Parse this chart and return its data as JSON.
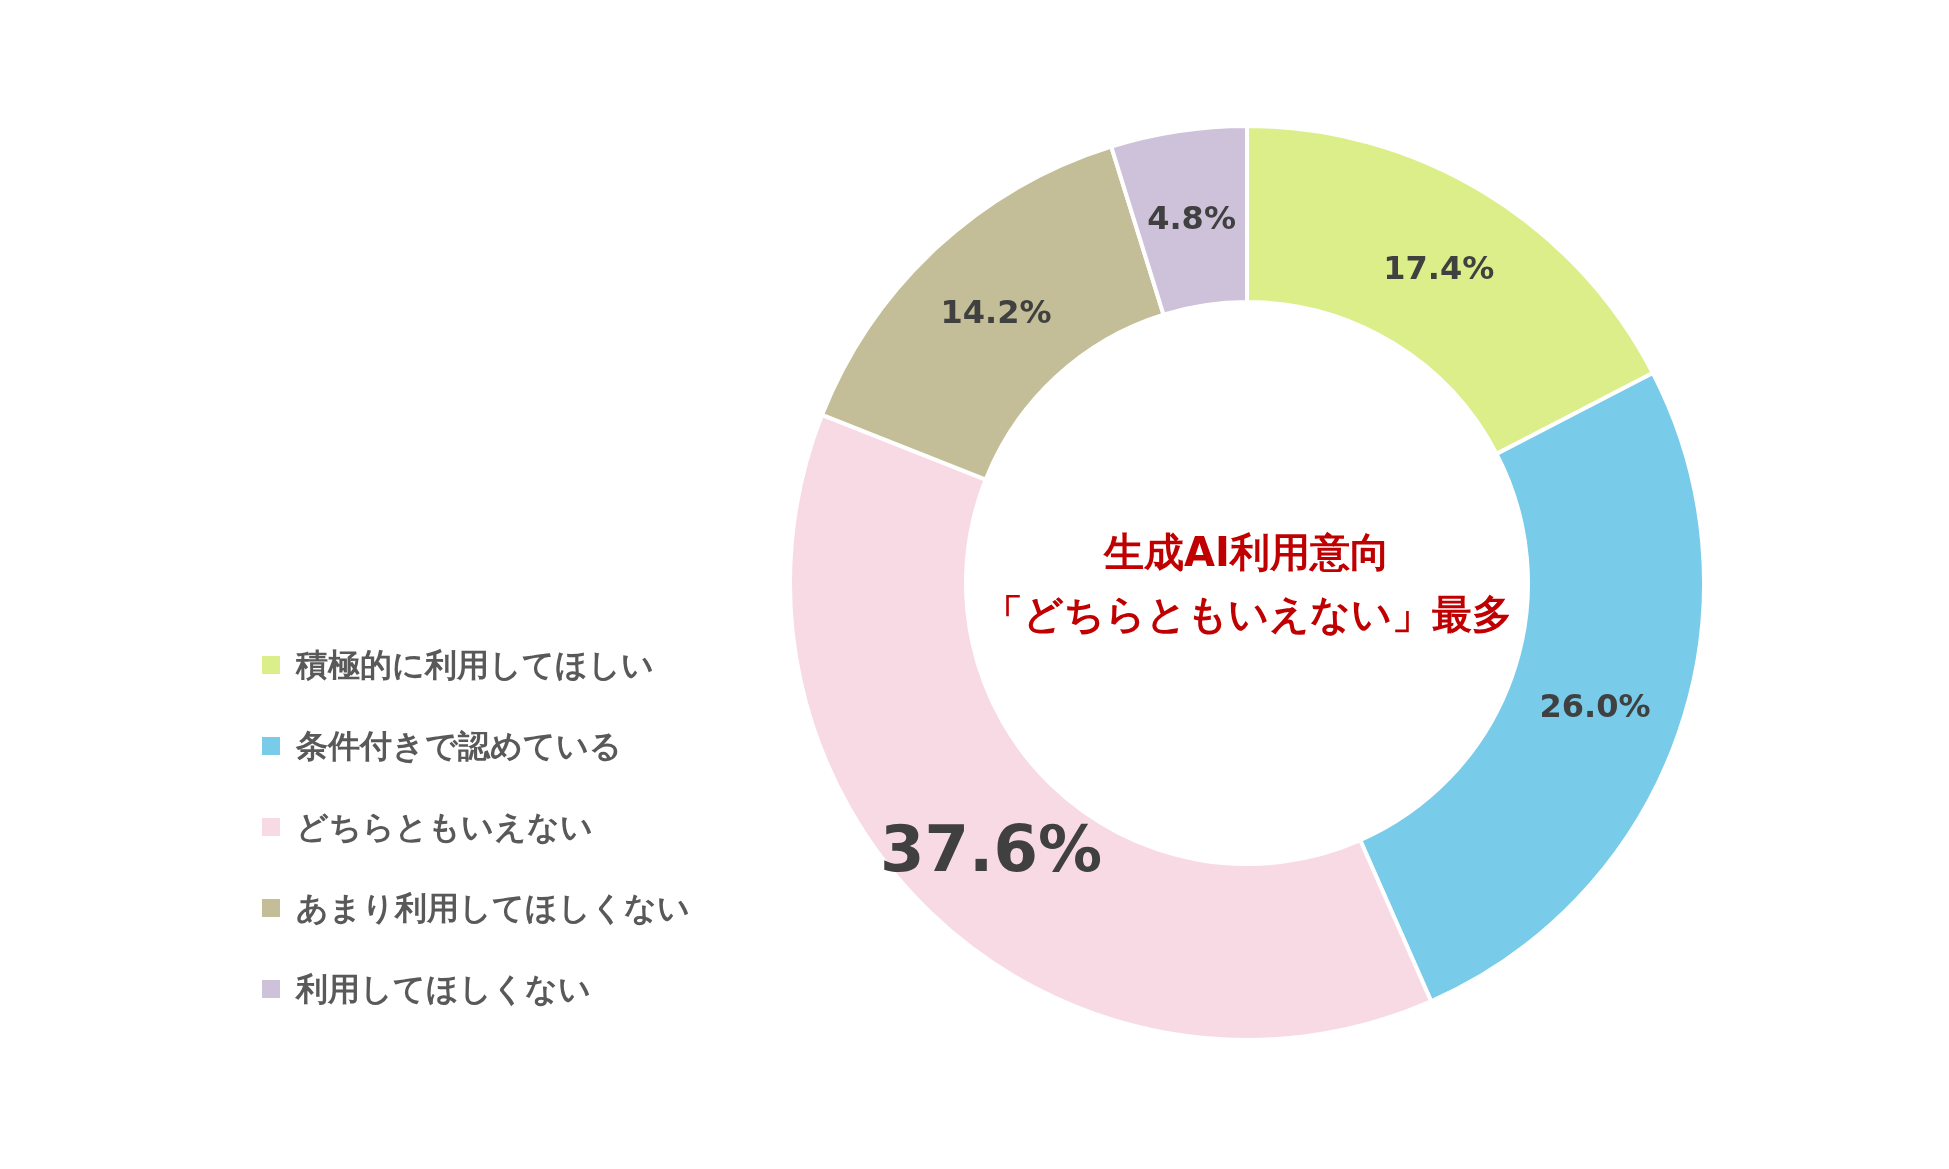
{
  "chart_data": {
    "type": "donut",
    "categories": [
      "積極的に利用してほしい",
      "条件付きで認めている",
      "どちらともいえない",
      "あまり利用してほしくない",
      "利用してほしくない"
    ],
    "values": [
      17.4,
      26.0,
      37.6,
      14.2,
      4.8
    ],
    "colors": [
      "#dcee8a",
      "#78cbe9",
      "#f8dae5",
      "#c3be97",
      "#cdc2da"
    ],
    "value_labels": [
      "17.4%",
      "26.0%",
      "37.6%",
      "14.2%",
      "4.8%"
    ],
    "annotations": [
      "生成AI利用意向",
      "「どちらともいえない」最多"
    ],
    "legend": "left"
  }
}
